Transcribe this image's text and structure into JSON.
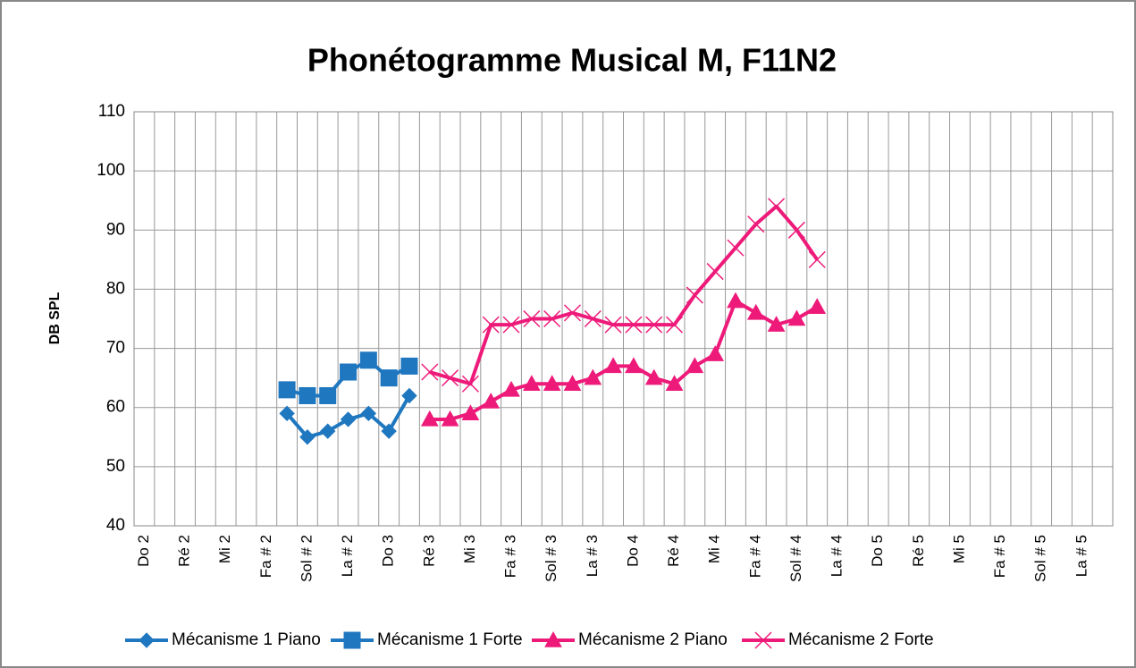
{
  "chart_data": {
    "type": "line",
    "title": "Phonétogramme Musical M, F11N2",
    "y_label": "DB SPL",
    "categories": [
      "Do 2",
      null,
      "Ré 2",
      null,
      "Mi 2",
      null,
      "Fa # 2",
      null,
      "Sol # 2",
      null,
      "La # 2",
      null,
      "Do 3",
      null,
      "Ré 3",
      null,
      "Mi 3",
      null,
      "Fa # 3",
      null,
      "Sol # 3",
      null,
      "La # 3",
      null,
      "Do 4",
      null,
      "Ré 4",
      null,
      "Mi 4",
      null,
      "Fa # 4",
      null,
      "Sol # 4",
      null,
      "La # 4",
      null,
      "Do 5",
      null,
      "Ré 5",
      null,
      "Mi 5",
      null,
      "Fa # 5",
      null,
      "Sol # 5",
      null,
      "La # 5",
      null
    ],
    "ylim": [
      40,
      110
    ],
    "yticks": [
      40,
      50,
      60,
      70,
      80,
      90,
      100,
      110
    ],
    "grid": true,
    "legend": "bottom",
    "series": [
      {
        "name": "Mécanisme 1 Piano",
        "color": "#1f77c0",
        "marker": "diamond",
        "values": [
          null,
          null,
          null,
          null,
          null,
          null,
          null,
          59,
          55,
          56,
          58,
          59,
          56,
          62,
          null,
          null,
          null,
          null,
          null,
          null,
          null,
          null,
          null,
          null,
          null,
          null,
          null,
          null,
          null,
          null,
          null,
          null,
          null,
          null,
          null,
          null,
          null,
          null,
          null,
          null,
          null,
          null,
          null,
          null,
          null,
          null,
          null,
          null
        ]
      },
      {
        "name": "Mécanisme 1 Forte",
        "color": "#1f77c0",
        "marker": "square",
        "values": [
          null,
          null,
          null,
          null,
          null,
          null,
          null,
          63,
          62,
          62,
          66,
          68,
          65,
          67,
          null,
          null,
          null,
          null,
          null,
          null,
          null,
          null,
          null,
          null,
          null,
          null,
          null,
          null,
          null,
          null,
          null,
          null,
          null,
          null,
          null,
          null,
          null,
          null,
          null,
          null,
          null,
          null,
          null,
          null,
          null,
          null,
          null,
          null
        ]
      },
      {
        "name": "Mécanisme 2 Piano",
        "color": "#ee1a7a",
        "marker": "triangle",
        "values": [
          null,
          null,
          null,
          null,
          null,
          null,
          null,
          null,
          null,
          null,
          null,
          null,
          null,
          null,
          58,
          58,
          59,
          61,
          63,
          64,
          64,
          64,
          65,
          67,
          67,
          65,
          64,
          67,
          69,
          78,
          76,
          74,
          75,
          77,
          null,
          null,
          null,
          null,
          null,
          null,
          null,
          null,
          null,
          null,
          null,
          null,
          null,
          null
        ]
      },
      {
        "name": "Mécanisme 2 Forte",
        "color": "#ee1a7a",
        "marker": "x",
        "values": [
          null,
          null,
          null,
          null,
          null,
          null,
          null,
          null,
          null,
          null,
          null,
          null,
          null,
          null,
          66,
          65,
          64,
          74,
          74,
          75,
          75,
          76,
          75,
          74,
          74,
          74,
          74,
          79,
          83,
          87,
          91,
          94,
          90,
          85,
          null,
          null,
          null,
          null,
          null,
          null,
          null,
          null,
          null,
          null,
          null,
          null,
          null,
          null
        ]
      }
    ]
  }
}
